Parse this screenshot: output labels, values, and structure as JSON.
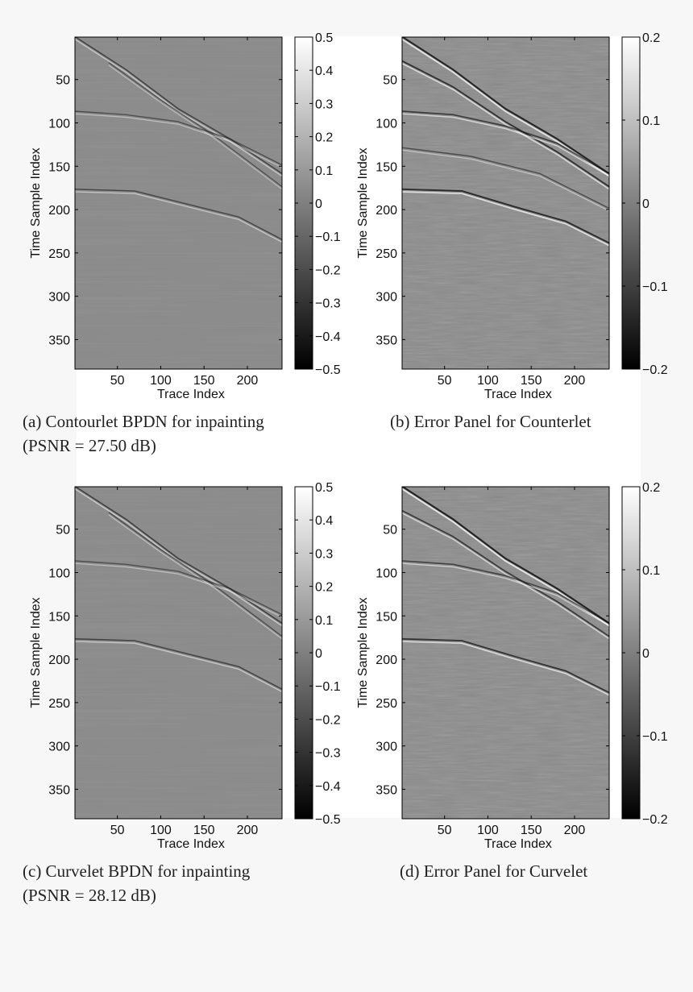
{
  "colors": {
    "page_background": "#f7f7f7",
    "panel_background": "#ffffff",
    "seismic_background": "#8a8a8a",
    "colormap": "gray"
  },
  "chart_data": [
    {
      "type": "heatmap",
      "panel_id": "a",
      "xlabel": "Trace Index",
      "ylabel": "Time Sample Index",
      "x_ticks": [
        50,
        100,
        150,
        200
      ],
      "y_ticks": [
        50,
        100,
        150,
        200,
        250,
        300,
        350
      ],
      "xlim": [
        1,
        240
      ],
      "ylim": [
        1,
        384
      ],
      "colorbar": {
        "range": [
          -0.5,
          0.5
        ],
        "ticks": [
          0.5,
          0.4,
          0.3,
          0.2,
          0.1,
          0,
          -0.1,
          -0.2,
          -0.3,
          -0.4,
          -0.5
        ],
        "tick_labels": [
          "0.5",
          "0.4",
          "0.3",
          "0.2",
          "0.1",
          "0",
          "−0.1",
          "−0.2",
          "−0.3",
          "−0.4",
          "−0.5"
        ]
      },
      "events": [
        {
          "points": [
            [
              1,
              2
            ],
            [
              60,
              40
            ],
            [
              120,
              85
            ],
            [
              180,
              120
            ],
            [
              240,
              160
            ]
          ],
          "amplitude": 0.45
        },
        {
          "points": [
            [
              40,
              32
            ],
            [
              100,
              75
            ],
            [
              160,
              115
            ],
            [
              240,
              175
            ]
          ],
          "amplitude": 0.25
        },
        {
          "points": [
            [
              1,
              88
            ],
            [
              60,
              92
            ],
            [
              120,
              100
            ],
            [
              180,
              120
            ],
            [
              240,
              150
            ]
          ],
          "amplitude": 0.3
        },
        {
          "points": [
            [
              1,
              178
            ],
            [
              70,
              180
            ],
            [
              130,
              195
            ],
            [
              190,
              210
            ],
            [
              240,
              236
            ]
          ],
          "amplitude": 0.4
        }
      ],
      "caption_lines": [
        "(a) Contourlet BPDN for inpainting",
        "(PSNR = 27.50 dB)"
      ]
    },
    {
      "type": "heatmap",
      "panel_id": "b",
      "xlabel": "Trace Index",
      "ylabel": "Time Sample Index",
      "x_ticks": [
        50,
        100,
        150,
        200
      ],
      "y_ticks": [
        50,
        100,
        150,
        200,
        250,
        300,
        350
      ],
      "xlim": [
        1,
        240
      ],
      "ylim": [
        1,
        384
      ],
      "colorbar": {
        "range": [
          -0.2,
          0.2
        ],
        "ticks": [
          0.2,
          0.1,
          0,
          -0.1,
          -0.2
        ],
        "tick_labels": [
          "0.2",
          "0.1",
          "0",
          "−0.1",
          "−0.2"
        ]
      },
      "events": [
        {
          "points": [
            [
              1,
              2
            ],
            [
              60,
              40
            ],
            [
              120,
              85
            ],
            [
              180,
              120
            ],
            [
              240,
              160
            ]
          ],
          "amplitude": 0.9
        },
        {
          "points": [
            [
              1,
              30
            ],
            [
              60,
              60
            ],
            [
              120,
              100
            ],
            [
              180,
              135
            ],
            [
              240,
              175
            ]
          ],
          "amplitude": 0.7
        },
        {
          "points": [
            [
              1,
              88
            ],
            [
              60,
              92
            ],
            [
              120,
              105
            ],
            [
              180,
              125
            ],
            [
              240,
              160
            ]
          ],
          "amplitude": 0.6
        },
        {
          "points": [
            [
              1,
              178
            ],
            [
              70,
              180
            ],
            [
              130,
              198
            ],
            [
              190,
              215
            ],
            [
              240,
              240
            ]
          ],
          "amplitude": 0.8
        },
        {
          "points": [
            [
              1,
              130
            ],
            [
              80,
              140
            ],
            [
              160,
              160
            ],
            [
              240,
              200
            ]
          ],
          "amplitude": 0.35
        }
      ],
      "caption_lines": [
        "(b) Error Panel for Counterlet"
      ]
    },
    {
      "type": "heatmap",
      "panel_id": "c",
      "xlabel": "Trace Index",
      "ylabel": "Time Sample Index",
      "x_ticks": [
        50,
        100,
        150,
        200
      ],
      "y_ticks": [
        50,
        100,
        150,
        200,
        250,
        300,
        350
      ],
      "xlim": [
        1,
        240
      ],
      "ylim": [
        1,
        384
      ],
      "colorbar": {
        "range": [
          -0.5,
          0.5
        ],
        "ticks": [
          0.5,
          0.4,
          0.3,
          0.2,
          0.1,
          0,
          -0.1,
          -0.2,
          -0.3,
          -0.4,
          -0.5
        ],
        "tick_labels": [
          "0.5",
          "0.4",
          "0.3",
          "0.2",
          "0.1",
          "0",
          "−0.1",
          "−0.2",
          "−0.3",
          "−0.4",
          "−0.5"
        ]
      },
      "events": [
        {
          "points": [
            [
              1,
              2
            ],
            [
              60,
              40
            ],
            [
              120,
              85
            ],
            [
              180,
              120
            ],
            [
              240,
              160
            ]
          ],
          "amplitude": 0.5
        },
        {
          "points": [
            [
              40,
              32
            ],
            [
              100,
              75
            ],
            [
              160,
              115
            ],
            [
              240,
              175
            ]
          ],
          "amplitude": 0.3
        },
        {
          "points": [
            [
              1,
              88
            ],
            [
              60,
              92
            ],
            [
              120,
              100
            ],
            [
              180,
              120
            ],
            [
              240,
              150
            ]
          ],
          "amplitude": 0.3
        },
        {
          "points": [
            [
              1,
              178
            ],
            [
              70,
              180
            ],
            [
              130,
              195
            ],
            [
              190,
              210
            ],
            [
              240,
              236
            ]
          ],
          "amplitude": 0.45
        }
      ],
      "caption_lines": [
        "(c) Curvelet BPDN for inpainting",
        "(PSNR = 28.12 dB)"
      ]
    },
    {
      "type": "heatmap",
      "panel_id": "d",
      "xlabel": "Trace Index",
      "ylabel": "Time Sample Index",
      "x_ticks": [
        50,
        100,
        150,
        200
      ],
      "y_ticks": [
        50,
        100,
        150,
        200,
        250,
        300,
        350
      ],
      "xlim": [
        1,
        240
      ],
      "ylim": [
        1,
        384
      ],
      "colorbar": {
        "range": [
          -0.2,
          0.2
        ],
        "ticks": [
          0.2,
          0.1,
          0,
          -0.1,
          -0.2
        ],
        "tick_labels": [
          "0.2",
          "0.1",
          "0",
          "−0.1",
          "−0.2"
        ]
      },
      "events": [
        {
          "points": [
            [
              1,
              2
            ],
            [
              60,
              40
            ],
            [
              120,
              85
            ],
            [
              180,
              120
            ],
            [
              240,
              160
            ]
          ],
          "amplitude": 0.95
        },
        {
          "points": [
            [
              1,
              30
            ],
            [
              60,
              60
            ],
            [
              120,
              100
            ],
            [
              180,
              135
            ],
            [
              240,
              175
            ]
          ],
          "amplitude": 0.6
        },
        {
          "points": [
            [
              1,
              88
            ],
            [
              60,
              92
            ],
            [
              120,
              105
            ],
            [
              180,
              125
            ],
            [
              240,
              160
            ]
          ],
          "amplitude": 0.5
        },
        {
          "points": [
            [
              1,
              178
            ],
            [
              70,
              180
            ],
            [
              130,
              198
            ],
            [
              190,
              215
            ],
            [
              240,
              240
            ]
          ],
          "amplitude": 0.7
        }
      ],
      "caption_lines": [
        "(d) Error Panel for Curvelet"
      ]
    }
  ]
}
